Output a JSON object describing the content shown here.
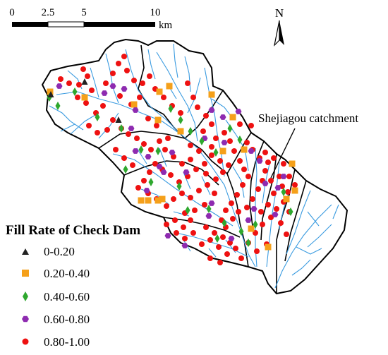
{
  "scale_bar": {
    "ticks": [
      "0",
      "2.5",
      "5",
      "10"
    ],
    "unit": "km"
  },
  "north_arrow": {
    "label": "N",
    "icon": "north-arrow-icon"
  },
  "callout": {
    "label": "Shejiagou catchment"
  },
  "legend": {
    "title": "Fill Rate of Check Dam",
    "items": [
      {
        "label": "0-0.20",
        "shape": "triangle",
        "color": "#222222"
      },
      {
        "label": "0.20-0.40",
        "shape": "square",
        "color": "#f5a01a"
      },
      {
        "label": "0.40-0.60",
        "shape": "diamond",
        "color": "#2ea82e"
      },
      {
        "label": "0.60-0.80",
        "shape": "hexagon",
        "color": "#8e2bb0"
      },
      {
        "label": "0.80-1.00",
        "shape": "circle",
        "color": "#ee1111"
      }
    ]
  },
  "colors": {
    "stream": "#3a9be0",
    "boundary": "#000000",
    "background": "#ffffff"
  }
}
